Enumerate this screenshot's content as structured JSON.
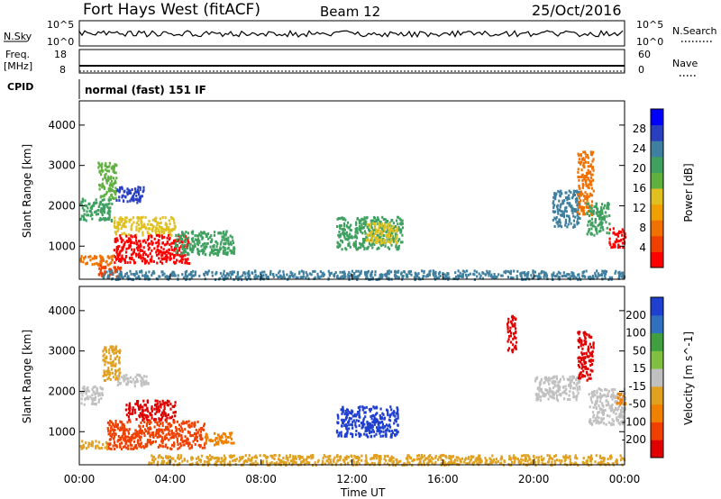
{
  "header": {
    "title": "Fort Hays West (fitACF)",
    "beam": "Beam 12",
    "date": "25/Oct/2016"
  },
  "aux": {
    "nsky_label": "N.Sky",
    "nsearch_label": "N.Search",
    "nsky_ticks": [
      "10^5",
      "10^0"
    ],
    "nsearch_ticks": [
      "10^5",
      "10^0"
    ],
    "freq_label_1": "Freq.",
    "freq_label_2": "[MHz]",
    "freq_ticks": [
      "18",
      "8"
    ],
    "nave_label": "Nave",
    "nave_ticks": [
      "60",
      "0"
    ],
    "cpid_label": "CPID",
    "cpid_text": "normal (fast) 151 IF"
  },
  "axes": {
    "ylabel": "Slant Range [km]",
    "xlabel": "Time UT",
    "yticks": [
      "1000",
      "2000",
      "3000",
      "4000"
    ],
    "xticks": [
      "00:00",
      "04:00",
      "08:00",
      "12:00",
      "16:00",
      "20:00",
      "00:00"
    ]
  },
  "power_scale": {
    "label": "Power [dB]",
    "ticks": [
      "4",
      "8",
      "12",
      "16",
      "20",
      "24",
      "28"
    ],
    "colors": [
      "#0000ff",
      "#2a3fc0",
      "#3f7f9f",
      "#3fa060",
      "#60b040",
      "#e0c020",
      "#f0a000",
      "#f07000",
      "#f04000",
      "#ff0000"
    ]
  },
  "velocity_scale": {
    "label": "Velocity [m s^-1]",
    "ticks": [
      "200",
      "100",
      "50",
      "15",
      "-15",
      "-50",
      "-100",
      "-200"
    ],
    "colors": [
      "#1f3fd0",
      "#3070c0",
      "#40a040",
      "#80c040",
      "#c0c0c0",
      "#e0a020",
      "#f08000",
      "#f04000",
      "#e00000"
    ]
  },
  "chart_data": {
    "type": "heatmap",
    "x_range_ut_hours": [
      0,
      24
    ],
    "y_range_km": [
      180,
      4600
    ],
    "panels": [
      {
        "name": "Power",
        "regions": [
          {
            "t0": 0.0,
            "t1": 1.4,
            "r0": 1650,
            "r1": 2200,
            "color": "#3fa060"
          },
          {
            "t0": 0.8,
            "t1": 1.6,
            "r0": 2200,
            "r1": 3100,
            "color": "#60b040"
          },
          {
            "t0": 1.6,
            "t1": 2.8,
            "r0": 2100,
            "r1": 2500,
            "color": "#2a3fc0"
          },
          {
            "t0": 1.5,
            "t1": 4.2,
            "r0": 1300,
            "r1": 1750,
            "color": "#e0c020"
          },
          {
            "t0": 1.5,
            "t1": 4.8,
            "r0": 600,
            "r1": 1300,
            "color": "#ff0000"
          },
          {
            "t0": 4.2,
            "t1": 6.8,
            "r0": 800,
            "r1": 1400,
            "color": "#3fa060"
          },
          {
            "t0": 0.0,
            "t1": 1.5,
            "r0": 550,
            "r1": 800,
            "color": "#f07000"
          },
          {
            "t0": 0.8,
            "t1": 1.8,
            "r0": 250,
            "r1": 550,
            "color": "#f04000"
          },
          {
            "t0": 11.3,
            "t1": 14.2,
            "r0": 950,
            "r1": 1750,
            "color": "#3fa060"
          },
          {
            "t0": 12.6,
            "t1": 14.0,
            "r0": 1100,
            "r1": 1600,
            "color": "#e0c020"
          },
          {
            "t0": 20.8,
            "t1": 22.0,
            "r0": 1500,
            "r1": 2400,
            "color": "#3f7f9f"
          },
          {
            "t0": 21.9,
            "t1": 22.6,
            "r0": 1800,
            "r1": 3400,
            "color": "#f07000"
          },
          {
            "t0": 22.3,
            "t1": 23.3,
            "r0": 1300,
            "r1": 2100,
            "color": "#3fa060"
          },
          {
            "t0": 23.3,
            "t1": 24.0,
            "r0": 1000,
            "r1": 1500,
            "color": "#ff0000"
          },
          {
            "t0": 1.0,
            "t1": 24.0,
            "r0": 200,
            "r1": 420,
            "color": "#3f7f9f"
          }
        ]
      },
      {
        "name": "Velocity",
        "regions": [
          {
            "t0": 0.0,
            "t1": 1.0,
            "r0": 1700,
            "r1": 2150,
            "color": "#c0c0c0"
          },
          {
            "t0": 1.0,
            "t1": 1.8,
            "r0": 2300,
            "r1": 3150,
            "color": "#e0a020"
          },
          {
            "t0": 1.6,
            "t1": 3.0,
            "r0": 2150,
            "r1": 2450,
            "color": "#c0c0c0"
          },
          {
            "t0": 2.0,
            "t1": 4.2,
            "r0": 1300,
            "r1": 1800,
            "color": "#e00000"
          },
          {
            "t0": 1.2,
            "t1": 5.5,
            "r0": 600,
            "r1": 1300,
            "color": "#f04000"
          },
          {
            "t0": 5.5,
            "t1": 6.8,
            "r0": 700,
            "r1": 1000,
            "color": "#f08000"
          },
          {
            "t0": 0.0,
            "t1": 1.2,
            "r0": 600,
            "r1": 800,
            "color": "#e0a020"
          },
          {
            "t0": 11.3,
            "t1": 14.0,
            "r0": 900,
            "r1": 1650,
            "color": "#1f3fd0"
          },
          {
            "t0": 18.8,
            "t1": 19.2,
            "r0": 3000,
            "r1": 3900,
            "color": "#e00000"
          },
          {
            "t0": 20.0,
            "t1": 22.0,
            "r0": 1800,
            "r1": 2400,
            "color": "#c0c0c0"
          },
          {
            "t0": 21.9,
            "t1": 22.6,
            "r0": 2300,
            "r1": 3500,
            "color": "#e00000"
          },
          {
            "t0": 22.4,
            "t1": 24.0,
            "r0": 1200,
            "r1": 2100,
            "color": "#c0c0c0"
          },
          {
            "t0": 23.6,
            "t1": 24.0,
            "r0": 1700,
            "r1": 2000,
            "color": "#f08000"
          },
          {
            "t0": 3.0,
            "t1": 24.0,
            "r0": 200,
            "r1": 450,
            "color": "#e0a020"
          }
        ]
      }
    ]
  }
}
